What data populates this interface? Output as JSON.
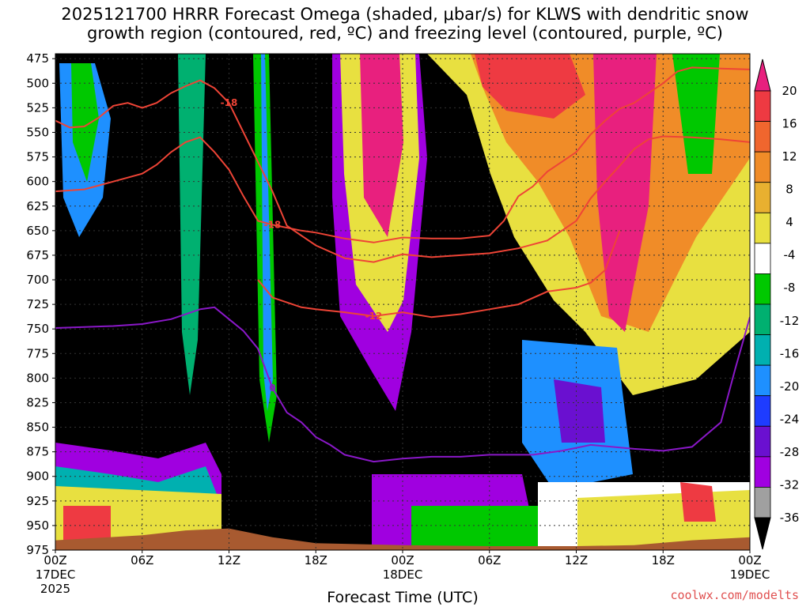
{
  "title_line1": "2025121700 HRRR Forecast Omega (shaded, μbar/s) for KLWS with dendritic snow",
  "title_line2": "growth region (contoured, red, ºC) and freezing level (contoured, purple, ºC)",
  "credit": "coolwx.com/modelts",
  "chart_data": {
    "type": "heatmap",
    "xlabel": "Forecast Time (UTC)",
    "ylabel": "",
    "x_ticks": [
      "00Z",
      "06Z",
      "12Z",
      "18Z",
      "00Z",
      "06Z",
      "12Z",
      "18Z",
      "00Z"
    ],
    "x_hours": [
      0,
      6,
      12,
      18,
      24,
      30,
      36,
      42,
      48
    ],
    "x_sublabels": [
      {
        "hour": 0,
        "lines": [
          "17DEC",
          "2025"
        ]
      },
      {
        "hour": 24,
        "lines": [
          "18DEC"
        ]
      },
      {
        "hour": 48,
        "lines": [
          "19DEC"
        ]
      }
    ],
    "y_ticks": [
      475,
      500,
      525,
      550,
      575,
      600,
      625,
      650,
      675,
      700,
      725,
      750,
      775,
      800,
      825,
      850,
      875,
      900,
      925,
      950,
      975
    ],
    "xlim": [
      0,
      48
    ],
    "ylim": [
      975,
      470
    ],
    "grid": true,
    "colorbar": {
      "labels": [
        "20",
        "16",
        "12",
        "8",
        "4",
        "-4",
        "-8",
        "-12",
        "-16",
        "-20",
        "-24",
        "-28",
        "-32",
        "-36"
      ],
      "colors": [
        "#e8207e",
        "#ee3a42",
        "#f0662e",
        "#f08c28",
        "#e8b030",
        "#e8e040",
        "#ffffff",
        "#00c800",
        "#00b070",
        "#00b0b0",
        "#1e90ff",
        "#1e3cff",
        "#6a10d0",
        "#a000e0",
        "#a0a0a0",
        "#000000"
      ]
    },
    "contours": [
      {
        "color": "#ee4436",
        "label": "-18",
        "points": [
          [
            0,
            610
          ],
          [
            2,
            608
          ],
          [
            4,
            600
          ],
          [
            6,
            592
          ],
          [
            7,
            583
          ],
          [
            8,
            570
          ],
          [
            9,
            560
          ],
          [
            10,
            555
          ],
          [
            11,
            570
          ],
          [
            12,
            588
          ],
          [
            13,
            615
          ],
          [
            14,
            640
          ],
          [
            15,
            644
          ],
          [
            17,
            650
          ],
          [
            18,
            652
          ],
          [
            20,
            658
          ],
          [
            22,
            662
          ],
          [
            24,
            657
          ],
          [
            26,
            658
          ],
          [
            28,
            658
          ],
          [
            30,
            655
          ],
          [
            31,
            640
          ],
          [
            32,
            615
          ],
          [
            33,
            605
          ],
          [
            34,
            590
          ],
          [
            35,
            580
          ],
          [
            36,
            570
          ],
          [
            37,
            552
          ],
          [
            38,
            538
          ],
          [
            39,
            526
          ],
          [
            40,
            520
          ],
          [
            41,
            510
          ],
          [
            42,
            500
          ],
          [
            43,
            488
          ],
          [
            44,
            484
          ],
          [
            46,
            485
          ],
          [
            48,
            486
          ]
        ]
      },
      {
        "color": "#ee4436",
        "label": "-18",
        "points": [
          [
            0,
            538
          ],
          [
            1,
            545
          ],
          [
            2,
            544
          ],
          [
            3,
            535
          ],
          [
            4,
            523
          ],
          [
            5,
            520
          ],
          [
            6,
            525
          ],
          [
            7,
            520
          ],
          [
            8,
            510
          ],
          [
            9,
            503
          ],
          [
            10,
            497
          ],
          [
            11,
            505
          ],
          [
            12,
            520
          ],
          [
            13,
            550
          ],
          [
            14,
            580
          ],
          [
            15,
            610
          ],
          [
            16,
            645
          ],
          [
            18,
            665
          ],
          [
            20,
            678
          ],
          [
            22,
            682
          ],
          [
            24,
            674
          ],
          [
            26,
            677
          ],
          [
            28,
            675
          ],
          [
            30,
            673
          ],
          [
            32,
            668
          ],
          [
            34,
            660
          ],
          [
            36,
            640
          ],
          [
            37,
            617
          ],
          [
            38,
            600
          ],
          [
            39,
            584
          ],
          [
            40,
            567
          ],
          [
            41,
            557
          ],
          [
            42,
            554
          ],
          [
            44,
            555
          ],
          [
            46,
            557
          ],
          [
            48,
            560
          ]
        ]
      },
      {
        "color": "#ee4436",
        "label": "-12",
        "points": [
          [
            14,
            700
          ],
          [
            15,
            718
          ],
          [
            17,
            728
          ],
          [
            18,
            730
          ],
          [
            20,
            733
          ],
          [
            22,
            737
          ],
          [
            24,
            733
          ],
          [
            26,
            738
          ],
          [
            28,
            735
          ],
          [
            30,
            730
          ],
          [
            32,
            725
          ],
          [
            34,
            712
          ],
          [
            36,
            708
          ],
          [
            37,
            703
          ],
          [
            38,
            690
          ],
          [
            38.5,
            670
          ],
          [
            39,
            650
          ]
        ]
      },
      {
        "color": "#8a18c8",
        "label": "0",
        "points": [
          [
            0,
            749
          ],
          [
            2,
            748
          ],
          [
            4,
            747
          ],
          [
            6,
            745
          ],
          [
            8,
            740
          ],
          [
            10,
            730
          ],
          [
            11,
            728
          ],
          [
            12,
            740
          ],
          [
            13,
            752
          ],
          [
            14,
            770
          ],
          [
            15,
            810
          ],
          [
            16,
            835
          ],
          [
            17,
            845
          ],
          [
            18,
            860
          ],
          [
            19,
            868
          ],
          [
            20,
            878
          ],
          [
            22,
            885
          ],
          [
            24,
            882
          ],
          [
            26,
            880
          ],
          [
            28,
            880
          ],
          [
            30,
            878
          ],
          [
            33,
            878
          ],
          [
            35,
            874
          ],
          [
            37,
            868
          ],
          [
            40,
            872
          ],
          [
            42,
            874
          ],
          [
            44,
            870
          ],
          [
            46,
            845
          ],
          [
            47,
            790
          ],
          [
            48,
            738
          ]
        ]
      }
    ],
    "terrain_color": "#a85a30",
    "terrain": [
      [
        0,
        965
      ],
      [
        6,
        960
      ],
      [
        9,
        955
      ],
      [
        12,
        953
      ],
      [
        15,
        962
      ],
      [
        18,
        968
      ],
      [
        24,
        970
      ],
      [
        30,
        971
      ],
      [
        36,
        971
      ],
      [
        40,
        970
      ],
      [
        44,
        965
      ],
      [
        48,
        962
      ]
    ]
  }
}
